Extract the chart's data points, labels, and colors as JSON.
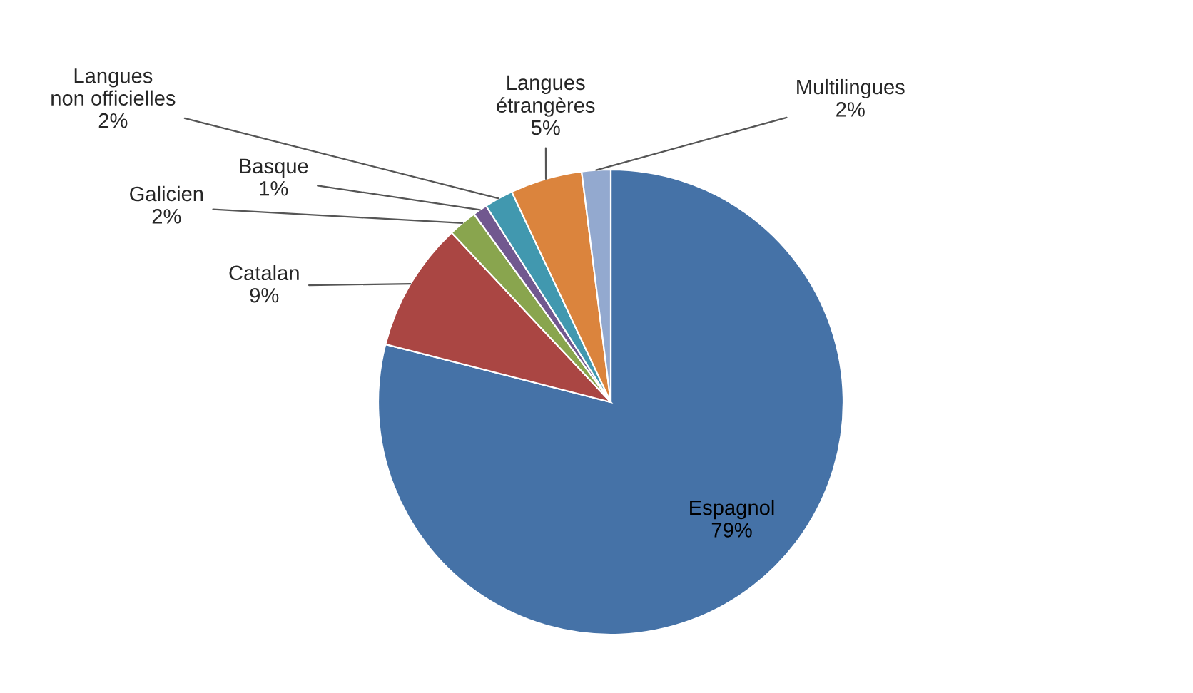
{
  "chart_data": {
    "type": "pie",
    "categories": [
      "Espagnol",
      "Catalan",
      "Galicien",
      "Basque",
      "Langues non officielles",
      "Langues étrangères",
      "Multilingues"
    ],
    "values": [
      79,
      9,
      2,
      1,
      2,
      5,
      2
    ],
    "value_labels": [
      "79%",
      "9%",
      "2%",
      "1%",
      "2%",
      "5%",
      "2%"
    ],
    "colors": [
      "#4572a7",
      "#aa4643",
      "#89a54e",
      "#71588f",
      "#4198af",
      "#db843d",
      "#93a9cf"
    ],
    "legend": false
  }
}
